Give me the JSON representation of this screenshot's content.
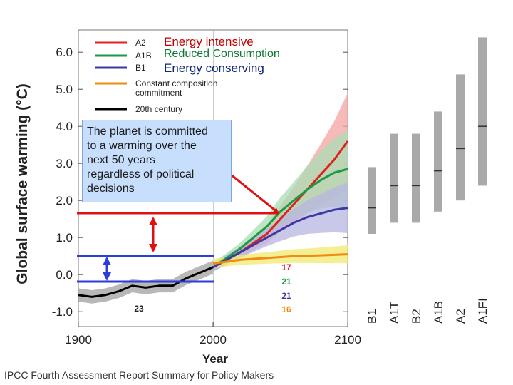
{
  "chart_data": {
    "type": "line",
    "title": "",
    "xlabel": "Year",
    "ylabel": "Global surface warming (°C)",
    "xlim": [
      1900,
      2100
    ],
    "ylim": [
      -1.4,
      6.6
    ],
    "xticks": [
      "1900",
      "2000",
      "2100"
    ],
    "yticks": [
      "-1.0",
      "0.0",
      "1.0",
      "2.0",
      "3.0",
      "4.0",
      "5.0",
      "6.0"
    ],
    "series": [
      {
        "name": "A2",
        "color": "#e0201f",
        "band": "#f3a3a0",
        "x": [
          2000,
          2010,
          2020,
          2030,
          2040,
          2050,
          2060,
          2070,
          2080,
          2090,
          2100
        ],
        "y": [
          0.2,
          0.4,
          0.6,
          0.85,
          1.1,
          1.5,
          1.9,
          2.3,
          2.7,
          3.1,
          3.6
        ]
      },
      {
        "name": "A1B",
        "color": "#1a9a45",
        "band": "#a9dcb4",
        "x": [
          2000,
          2010,
          2020,
          2030,
          2040,
          2050,
          2060,
          2070,
          2080,
          2090,
          2100
        ],
        "y": [
          0.2,
          0.45,
          0.7,
          1.0,
          1.3,
          1.7,
          2.0,
          2.3,
          2.55,
          2.75,
          2.85
        ]
      },
      {
        "name": "B1",
        "color": "#3b3aa3",
        "band": "#b8b6e2",
        "x": [
          2000,
          2010,
          2020,
          2030,
          2040,
          2050,
          2060,
          2070,
          2080,
          2090,
          2100
        ],
        "y": [
          0.2,
          0.4,
          0.6,
          0.8,
          1.0,
          1.2,
          1.4,
          1.55,
          1.65,
          1.75,
          1.8
        ]
      },
      {
        "name": "Constant composition commitment",
        "color": "#f08a10",
        "band": "#f2ea70",
        "x": [
          2000,
          2020,
          2040,
          2060,
          2080,
          2100
        ],
        "y": [
          0.3,
          0.4,
          0.45,
          0.5,
          0.52,
          0.55
        ]
      },
      {
        "name": "20th century",
        "color": "#000000",
        "band": "#a0a0a0",
        "x": [
          1900,
          1910,
          1920,
          1930,
          1940,
          1950,
          1960,
          1970,
          1980,
          1990,
          2000
        ],
        "y": [
          -0.55,
          -0.6,
          -0.55,
          -0.45,
          -0.3,
          -0.35,
          -0.3,
          -0.3,
          -0.1,
          0.05,
          0.2
        ]
      }
    ],
    "model_counts": [
      {
        "text": "23",
        "color": "#222222"
      },
      {
        "text": "17",
        "color": "#e0201f"
      },
      {
        "text": "21",
        "color": "#1a9a45"
      },
      {
        "text": "21",
        "color": "#3b3aa3"
      },
      {
        "text": "16",
        "color": "#f08a10"
      }
    ],
    "likely_ranges": [
      {
        "scenario": "B1",
        "low": 1.1,
        "high": 2.9,
        "best": 1.8
      },
      {
        "scenario": "A1T",
        "low": 1.4,
        "high": 3.8,
        "best": 2.4
      },
      {
        "scenario": "B2",
        "low": 1.4,
        "high": 3.8,
        "best": 2.4
      },
      {
        "scenario": "A1B",
        "low": 1.7,
        "high": 4.4,
        "best": 2.8
      },
      {
        "scenario": "A2",
        "low": 2.0,
        "high": 5.4,
        "best": 3.4
      },
      {
        "scenario": "A1FI",
        "low": 2.4,
        "high": 6.4,
        "best": 4.0
      }
    ]
  },
  "legend": {
    "a2": "A2",
    "a1b": "A1B",
    "b1": "B1",
    "commit1": "Constant composition",
    "commit2": "commitment",
    "century": "20th century"
  },
  "overlay_labels": {
    "a2": "Energy intensive",
    "a1b": "Reduced Consumption",
    "b1": "Energy conserving"
  },
  "annotation": {
    "lines": [
      "The planet is committed",
      "to a warming over the",
      "next 50 years",
      "regardless of political",
      "decisions"
    ]
  },
  "footer": "IPCC Fourth Assessment Report Summary for Policy Makers",
  "colors": {
    "red_arrow": "#e01010",
    "blue_arrow": "#2b3ddb",
    "callout_bg": "#c7defc"
  }
}
